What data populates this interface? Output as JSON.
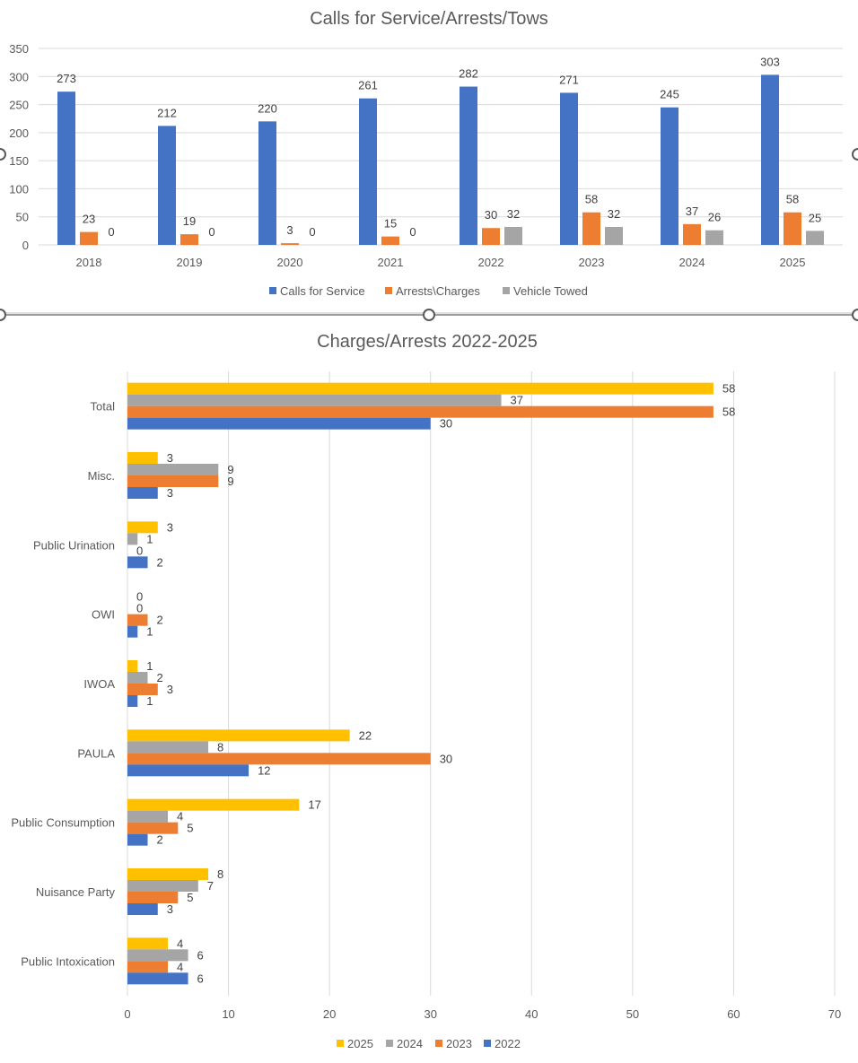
{
  "chart_data": [
    {
      "type": "bar",
      "orientation": "vertical",
      "title": "Calls for Service/Arrests/Tows",
      "categories": [
        "2018",
        "2019",
        "2020",
        "2021",
        "2022",
        "2023",
        "2024",
        "2025"
      ],
      "series": [
        {
          "name": "Calls for Service",
          "values": [
            273,
            212,
            220,
            261,
            282,
            271,
            245,
            303
          ],
          "color": "#4472C4"
        },
        {
          "name": "Arrests\\Charges",
          "values": [
            23,
            19,
            3,
            15,
            30,
            58,
            37,
            58
          ],
          "color": "#ED7D31"
        },
        {
          "name": "Vehicle Towed",
          "values": [
            0,
            0,
            0,
            0,
            32,
            32,
            26,
            25
          ],
          "color": "#A5A5A5"
        }
      ],
      "ylim": [
        0,
        350
      ],
      "yticks": [
        0,
        50,
        100,
        150,
        200,
        250,
        300,
        350
      ],
      "grid": true,
      "data_labels": true,
      "legend_position": "bottom"
    },
    {
      "type": "bar",
      "orientation": "horizontal",
      "title": "Charges/Arrests 2022-2025",
      "categories": [
        "Total",
        "Misc.",
        "Public Urination",
        "OWI",
        "IWOA",
        "PAULA",
        "Public Consumption",
        "Nuisance Party",
        "Public Intoxication"
      ],
      "series": [
        {
          "name": "2025",
          "values": [
            58,
            3,
            3,
            0,
            1,
            22,
            17,
            8,
            4
          ],
          "color": "#FFC000"
        },
        {
          "name": "2024",
          "values": [
            37,
            9,
            1,
            0,
            2,
            8,
            4,
            7,
            6
          ],
          "color": "#A5A5A5"
        },
        {
          "name": "2023",
          "values": [
            58,
            9,
            0,
            2,
            3,
            30,
            5,
            5,
            4
          ],
          "color": "#ED7D31"
        },
        {
          "name": "2022",
          "values": [
            30,
            3,
            2,
            1,
            1,
            12,
            2,
            3,
            6
          ],
          "color": "#4472C4"
        }
      ],
      "xlim": [
        0,
        70
      ],
      "xticks": [
        0,
        10,
        20,
        30,
        40,
        50,
        60,
        70
      ],
      "grid": true,
      "data_labels": true,
      "legend_position": "bottom"
    }
  ]
}
